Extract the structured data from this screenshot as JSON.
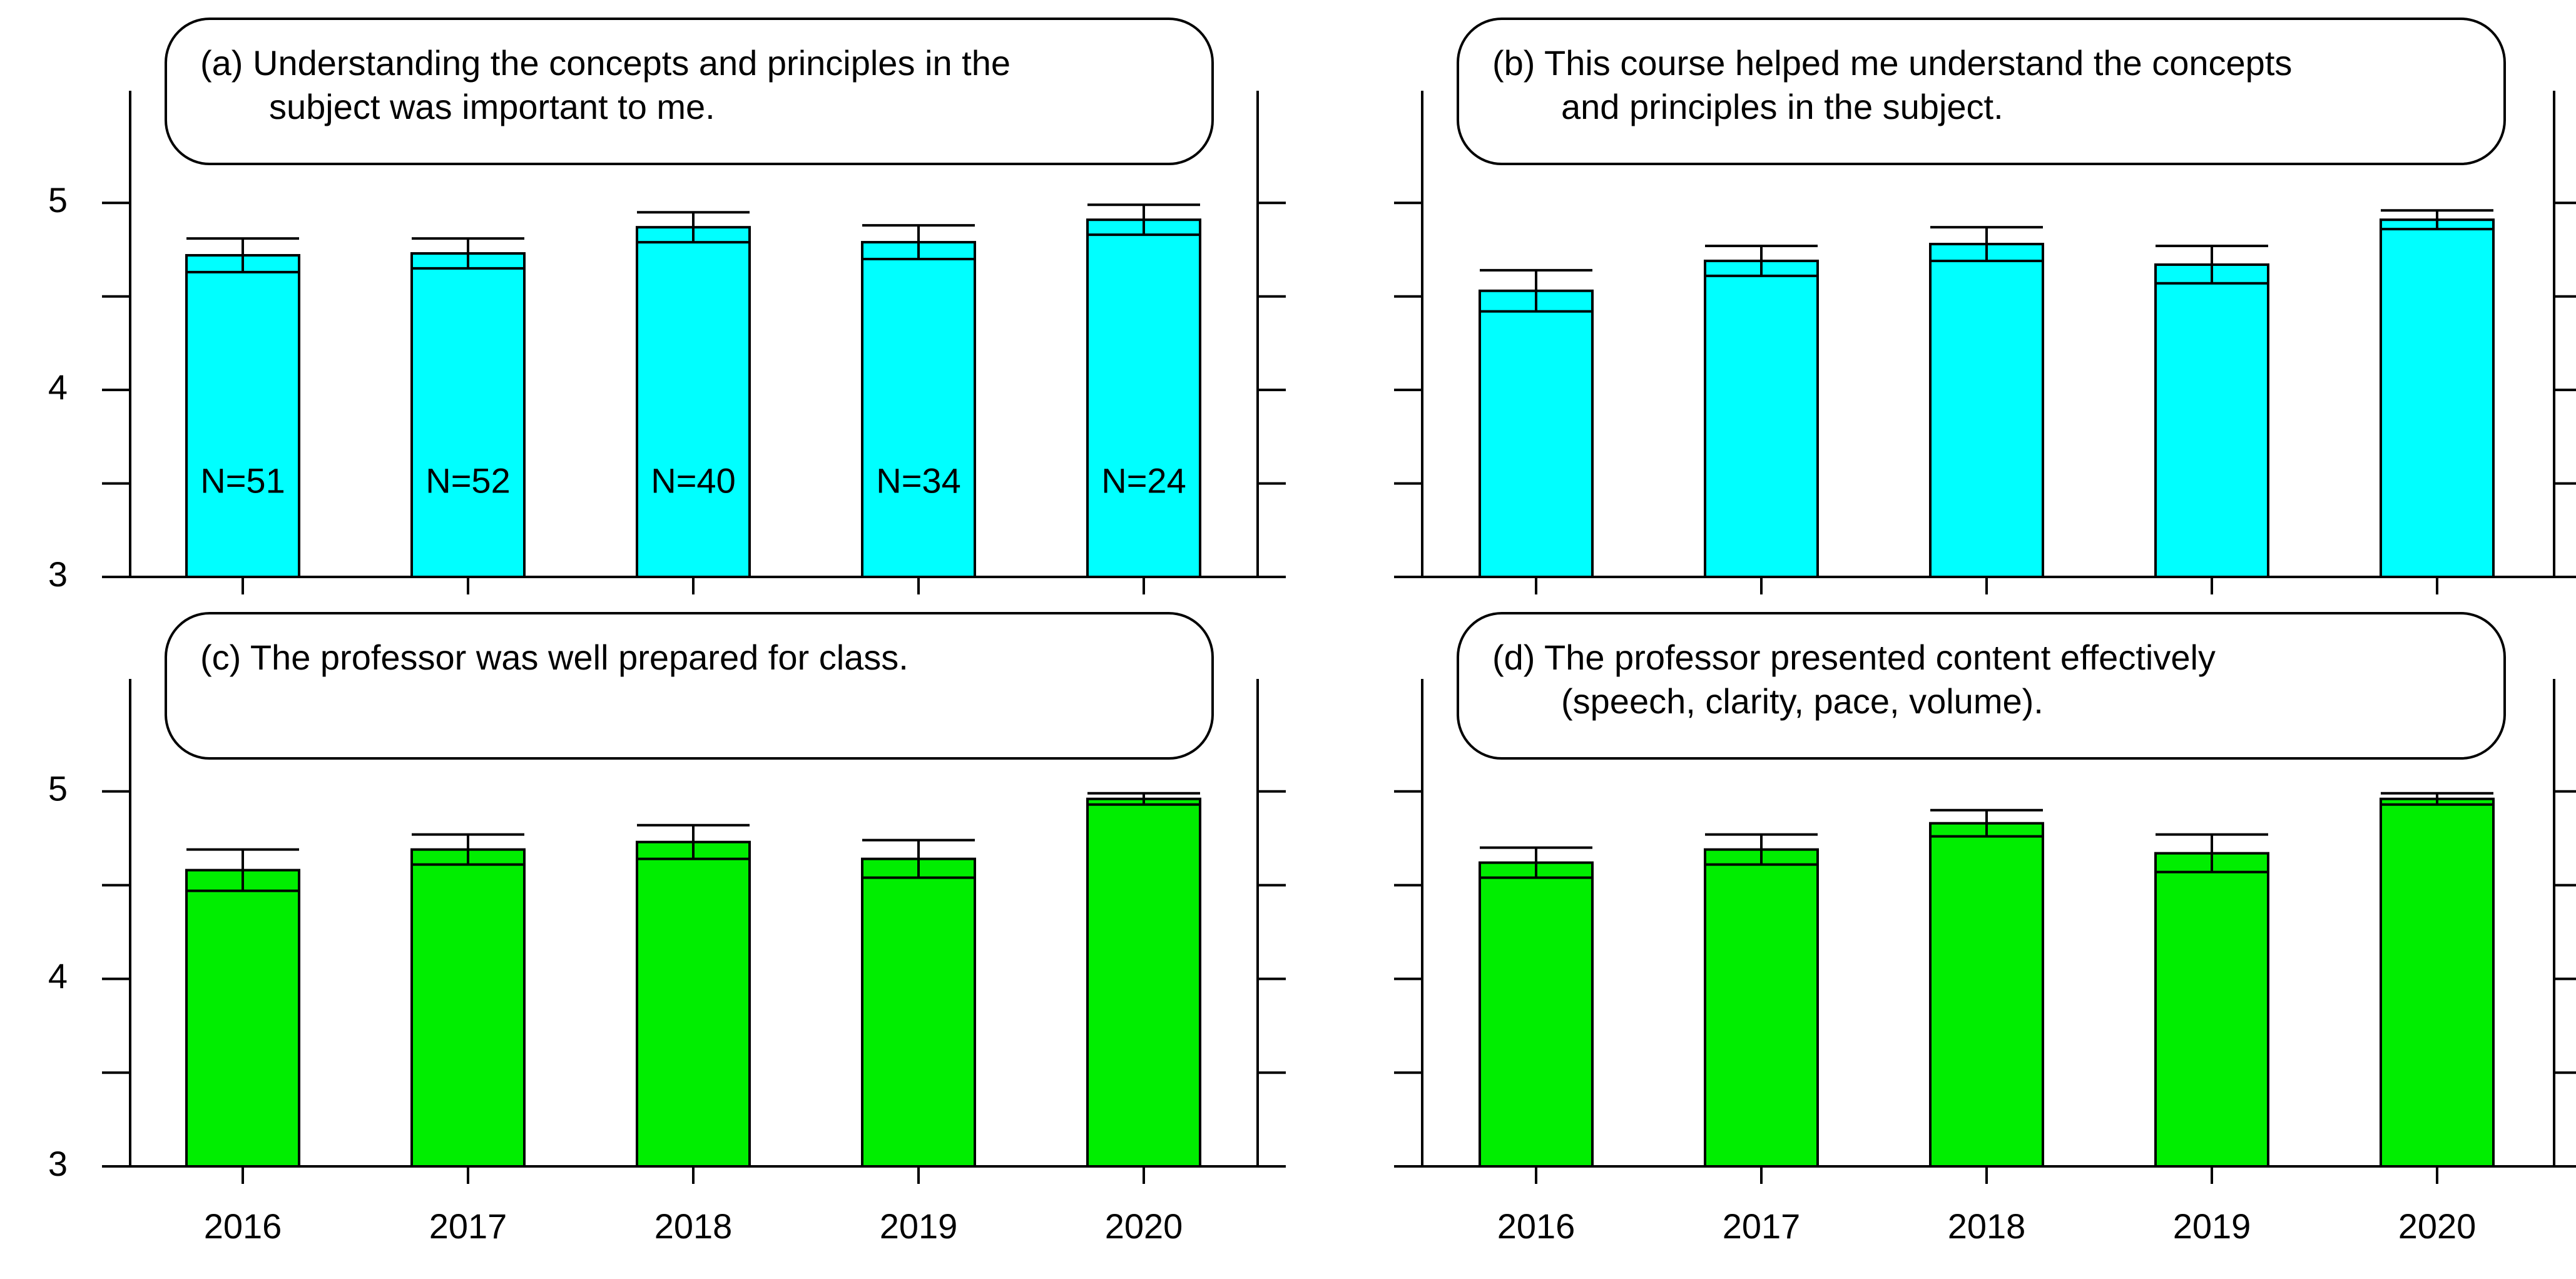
{
  "chart_data": [
    {
      "type": "bar",
      "id": "a",
      "title": [
        "(a) Understanding the concepts and principles in the",
        "subject was important to me."
      ],
      "categories": [
        "2016",
        "2017",
        "2018",
        "2019",
        "2020"
      ],
      "values": [
        4.72,
        4.73,
        4.87,
        4.79,
        4.91
      ],
      "errors": [
        0.09,
        0.08,
        0.08,
        0.09,
        0.08
      ],
      "annotations": [
        "N=51",
        "N=52",
        "N=40",
        "N=34",
        "N=24"
      ],
      "annotation_y": 3.5,
      "color": "#00ffff",
      "ylim": [
        3,
        5.6
      ],
      "yticks": [
        3,
        3.5,
        4,
        4.5,
        5
      ],
      "yticklabels": [
        "3",
        "",
        "4",
        "",
        "5"
      ],
      "xlabel": "",
      "ylabel": ""
    },
    {
      "type": "bar",
      "id": "b",
      "title": [
        "(b) This course helped me understand the concepts",
        "and principles in the subject."
      ],
      "categories": [
        "2016",
        "2017",
        "2018",
        "2019",
        "2020"
      ],
      "values": [
        4.53,
        4.69,
        4.78,
        4.67,
        4.91
      ],
      "errors": [
        0.11,
        0.08,
        0.09,
        0.1,
        0.05
      ],
      "annotations": [],
      "color": "#00ffff",
      "ylim": [
        3,
        5.6
      ],
      "yticks": [
        3,
        3.5,
        4,
        4.5,
        5
      ],
      "yticklabels": [
        "",
        "",
        "",
        "",
        ""
      ],
      "xlabel": "",
      "ylabel": ""
    },
    {
      "type": "bar",
      "id": "c",
      "title": [
        "(c) The professor was well prepared for class."
      ],
      "categories": [
        "2016",
        "2017",
        "2018",
        "2019",
        "2020"
      ],
      "values": [
        4.58,
        4.69,
        4.73,
        4.64,
        4.96
      ],
      "errors": [
        0.11,
        0.08,
        0.09,
        0.1,
        0.03
      ],
      "annotations": [],
      "color": "#00ee00",
      "ylim": [
        3,
        5.6
      ],
      "yticks": [
        3,
        3.5,
        4,
        4.5,
        5
      ],
      "yticklabels": [
        "3",
        "",
        "4",
        "",
        "5"
      ],
      "xlabel": "",
      "ylabel": ""
    },
    {
      "type": "bar",
      "id": "d",
      "title": [
        "(d) The professor presented content effectively",
        "(speech, clarity, pace, volume)."
      ],
      "categories": [
        "2016",
        "2017",
        "2018",
        "2019",
        "2020"
      ],
      "values": [
        4.62,
        4.69,
        4.83,
        4.67,
        4.96
      ],
      "errors": [
        0.08,
        0.08,
        0.07,
        0.1,
        0.03
      ],
      "annotations": [],
      "color": "#00ee00",
      "ylim": [
        3,
        5.6
      ],
      "yticks": [
        3,
        3.5,
        4,
        4.5,
        5
      ],
      "yticklabels": [
        "",
        "",
        "",
        "",
        ""
      ],
      "xlabel": "",
      "ylabel": ""
    }
  ]
}
